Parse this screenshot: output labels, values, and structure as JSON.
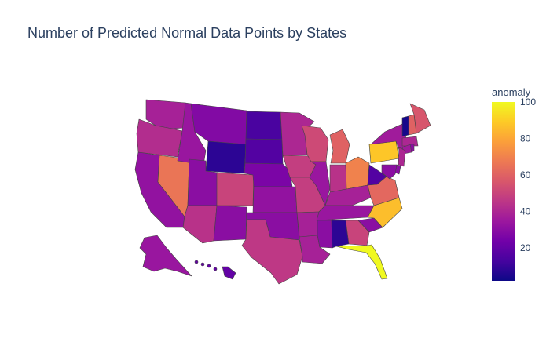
{
  "title": "Number of Predicted Normal Data Points by States",
  "colorbar": {
    "title": "anomaly",
    "ticks": [
      20,
      40,
      60,
      80,
      100
    ],
    "range": [
      2,
      100
    ]
  },
  "colorscale": [
    "#0d0887",
    "#46039f",
    "#7201a8",
    "#9c179e",
    "#bd3786",
    "#d8576b",
    "#ed7953",
    "#fb9f3a",
    "#fdca26",
    "#f0f921"
  ],
  "chart_data": {
    "type": "choropleth",
    "locationmode": "USA-states",
    "color_field": "anomaly",
    "values": {
      "WA": 38,
      "OR": 42,
      "CA": 32,
      "NV": 66,
      "ID": 34,
      "MT": 28,
      "WY": 8,
      "UT": 30,
      "AZ": 44,
      "CO": 50,
      "NM": 30,
      "ND": 14,
      "SD": 16,
      "NE": 26,
      "KS": 32,
      "OK": 30,
      "TX": 46,
      "MN": 40,
      "IA": 48,
      "MO": 48,
      "AR": 38,
      "LA": 38,
      "WI": 52,
      "IL": 34,
      "MI": 60,
      "IN": 44,
      "OH": 70,
      "KY": 38,
      "TN": 34,
      "MS": 30,
      "AL": 8,
      "GA": 50,
      "FL": 100,
      "SC": 30,
      "NC": 86,
      "VA": 62,
      "WV": 16,
      "PA": 88,
      "NY": 36,
      "ME": 56,
      "NH": 60,
      "VT": 4,
      "MA": 40,
      "CT": 36,
      "RI": 30,
      "NJ": 40,
      "DE": 30,
      "MD": 30,
      "AK": 34,
      "HI": 20
    }
  }
}
